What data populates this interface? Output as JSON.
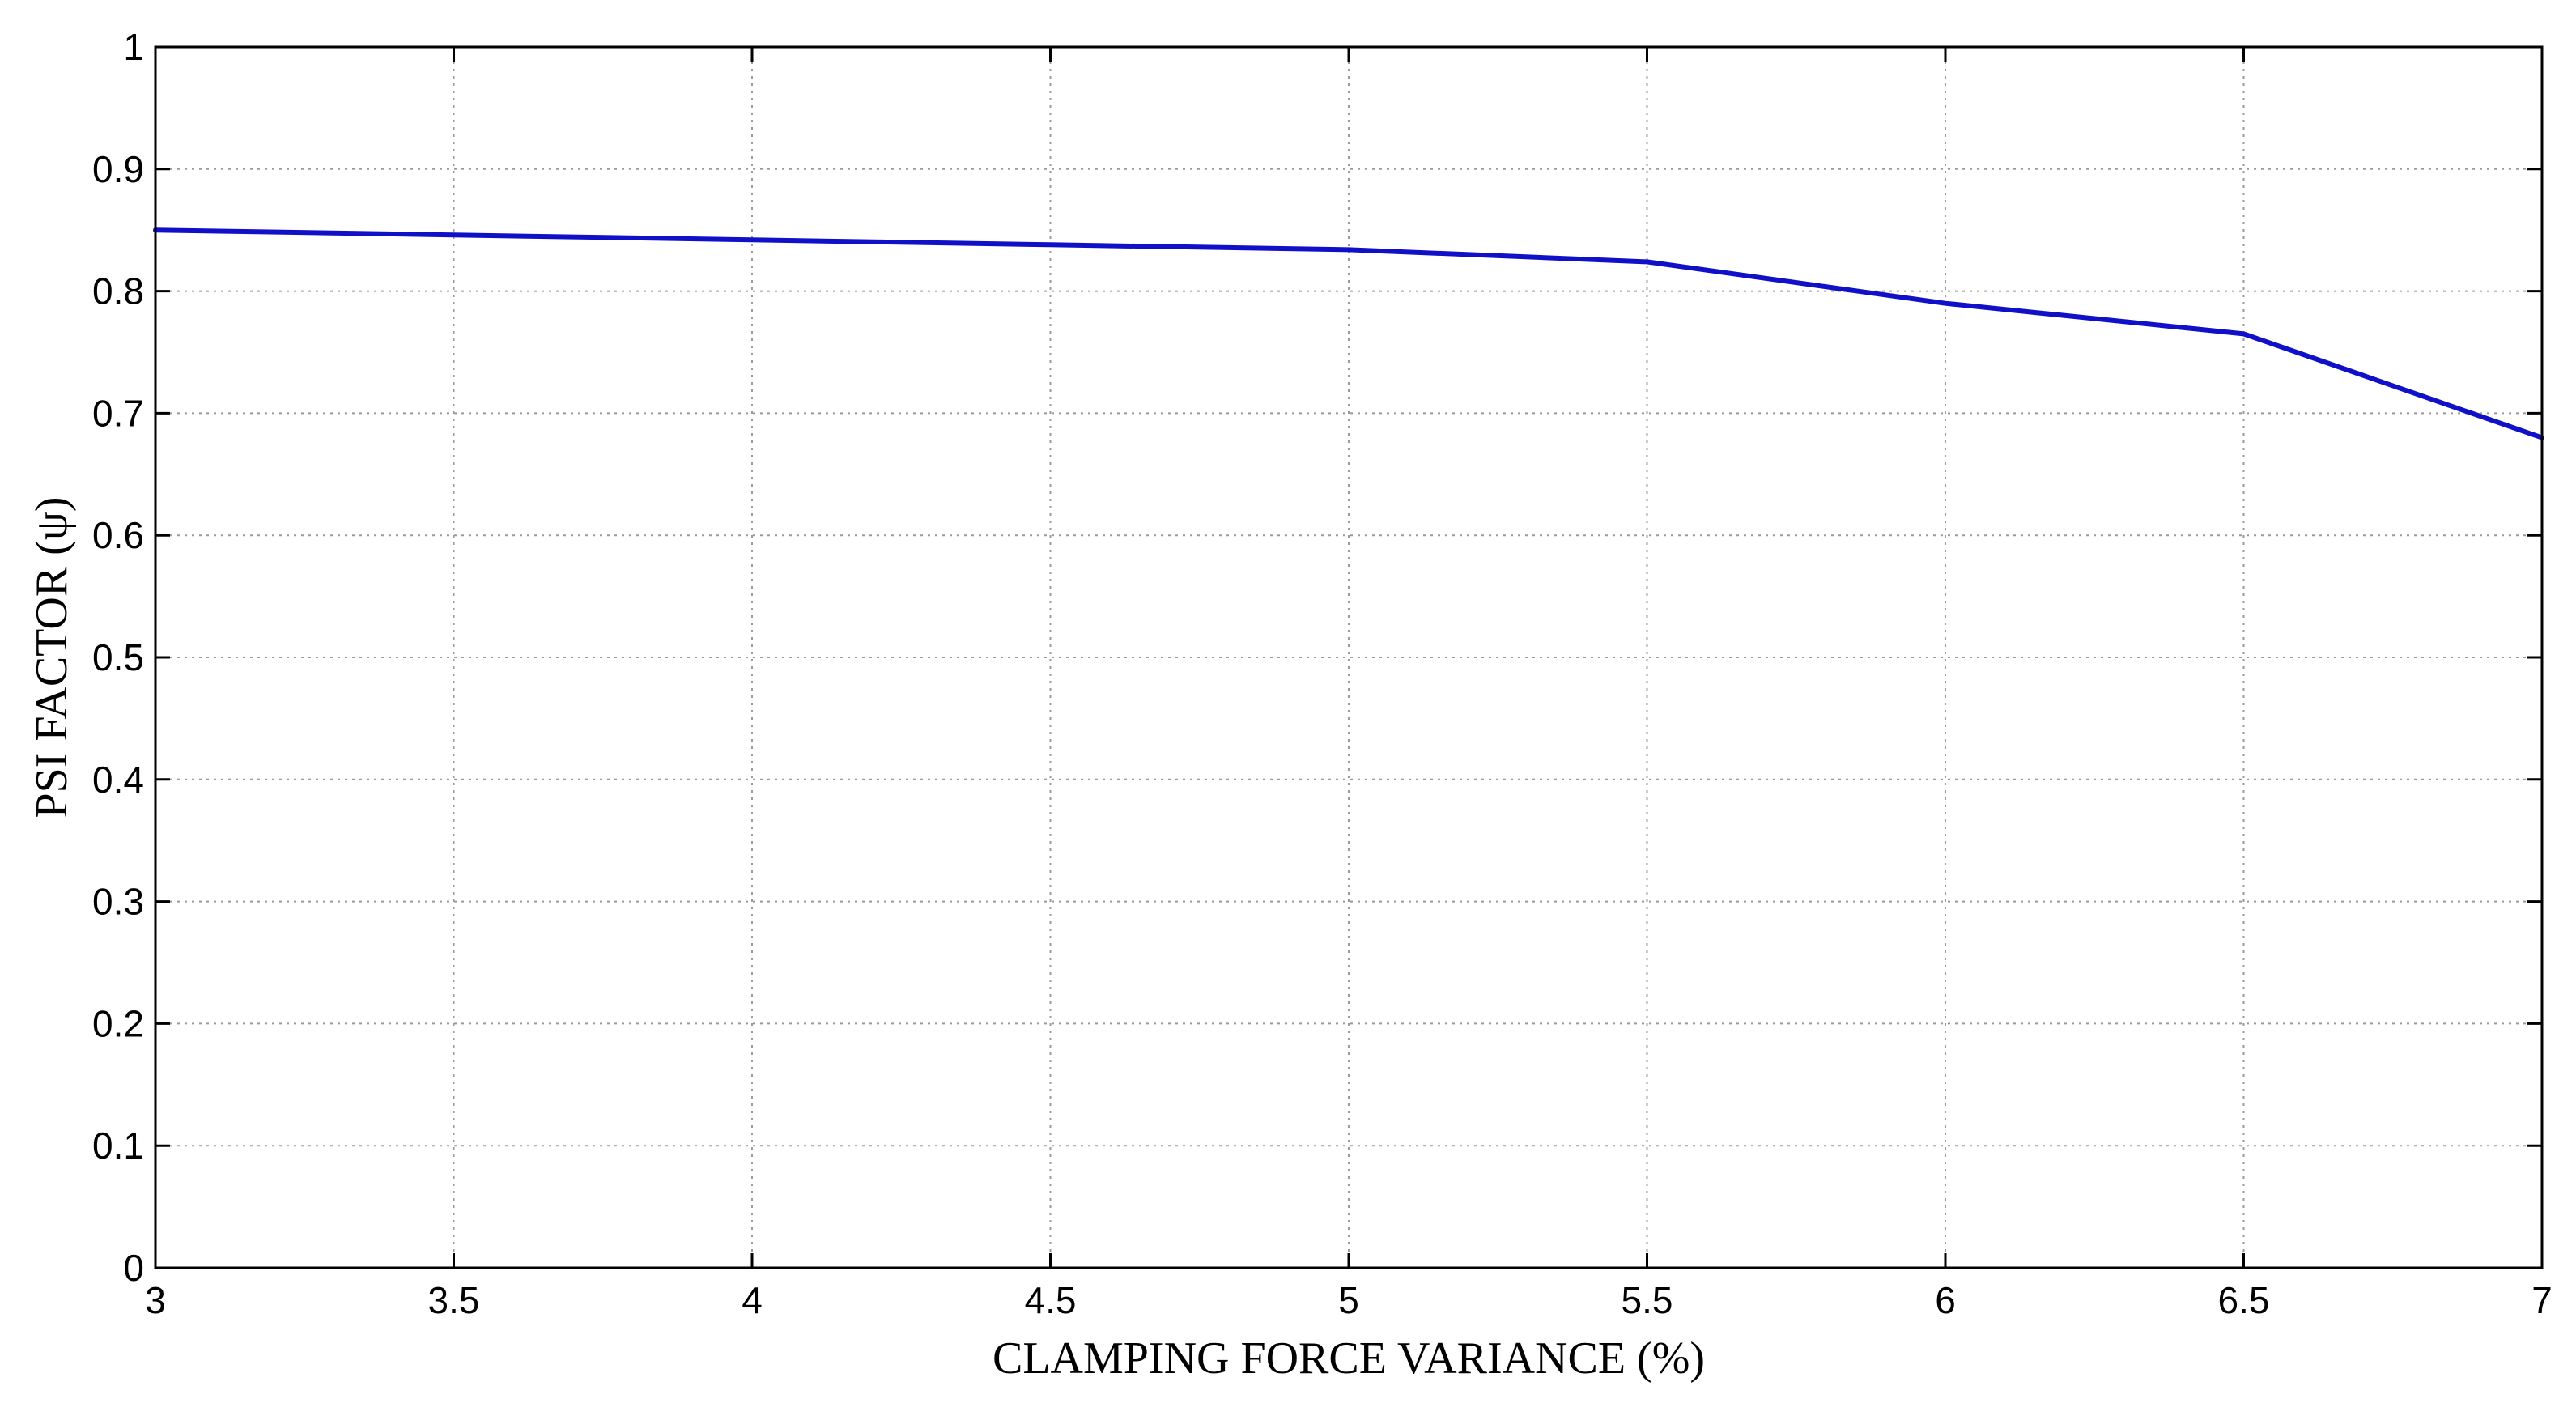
{
  "chart_data": {
    "type": "line",
    "title": "",
    "xlabel": "CLAMPING FORCE VARIANCE (%)",
    "ylabel": "PSI FACTOR (ψ)",
    "xlim": [
      3,
      7
    ],
    "ylim": [
      0,
      1
    ],
    "xticks": [
      "3",
      "3.5",
      "4",
      "4.5",
      "5",
      "5.5",
      "6",
      "6.5",
      "7"
    ],
    "yticks": [
      "0",
      "0.1",
      "0.2",
      "0.3",
      "0.4",
      "0.5",
      "0.6",
      "0.7",
      "0.8",
      "0.9",
      "1"
    ],
    "grid": true,
    "legend": "none",
    "series": [
      {
        "color": "#1010c8",
        "x": [
          3,
          3.5,
          4,
          4.5,
          5,
          5.5,
          6,
          6.5,
          7
        ],
        "y": [
          0.85,
          0.846,
          0.842,
          0.838,
          0.834,
          0.824,
          0.79,
          0.765,
          0.68
        ]
      }
    ]
  }
}
